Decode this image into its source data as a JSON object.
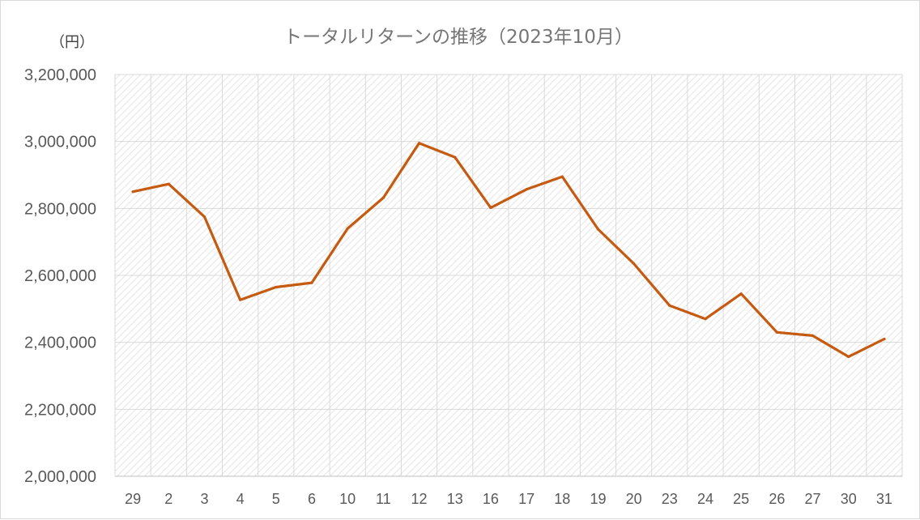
{
  "chart_data": {
    "type": "line",
    "title": "トータルリターンの推移（2023年10月）",
    "unit_label": "（円）",
    "categories": [
      "29",
      "2",
      "3",
      "4",
      "5",
      "6",
      "10",
      "11",
      "12",
      "13",
      "16",
      "17",
      "18",
      "19",
      "20",
      "23",
      "24",
      "25",
      "26",
      "27",
      "30",
      "31"
    ],
    "series": [
      {
        "values": [
          2850000,
          2873000,
          2775000,
          2527000,
          2565000,
          2578000,
          2740000,
          2832000,
          2995000,
          2953000,
          2802000,
          2857000,
          2895000,
          2738000,
          2635000,
          2510000,
          2470000,
          2545000,
          2430000,
          2420000,
          2357000,
          2410000
        ],
        "color": "#C55A11"
      }
    ],
    "ylim": [
      2000000,
      3200000
    ],
    "yticks": [
      "2,000,000",
      "2,200,000",
      "2,400,000",
      "2,600,000",
      "2,800,000",
      "3,000,000",
      "3,200,000"
    ],
    "grid": true,
    "legend": "none"
  }
}
